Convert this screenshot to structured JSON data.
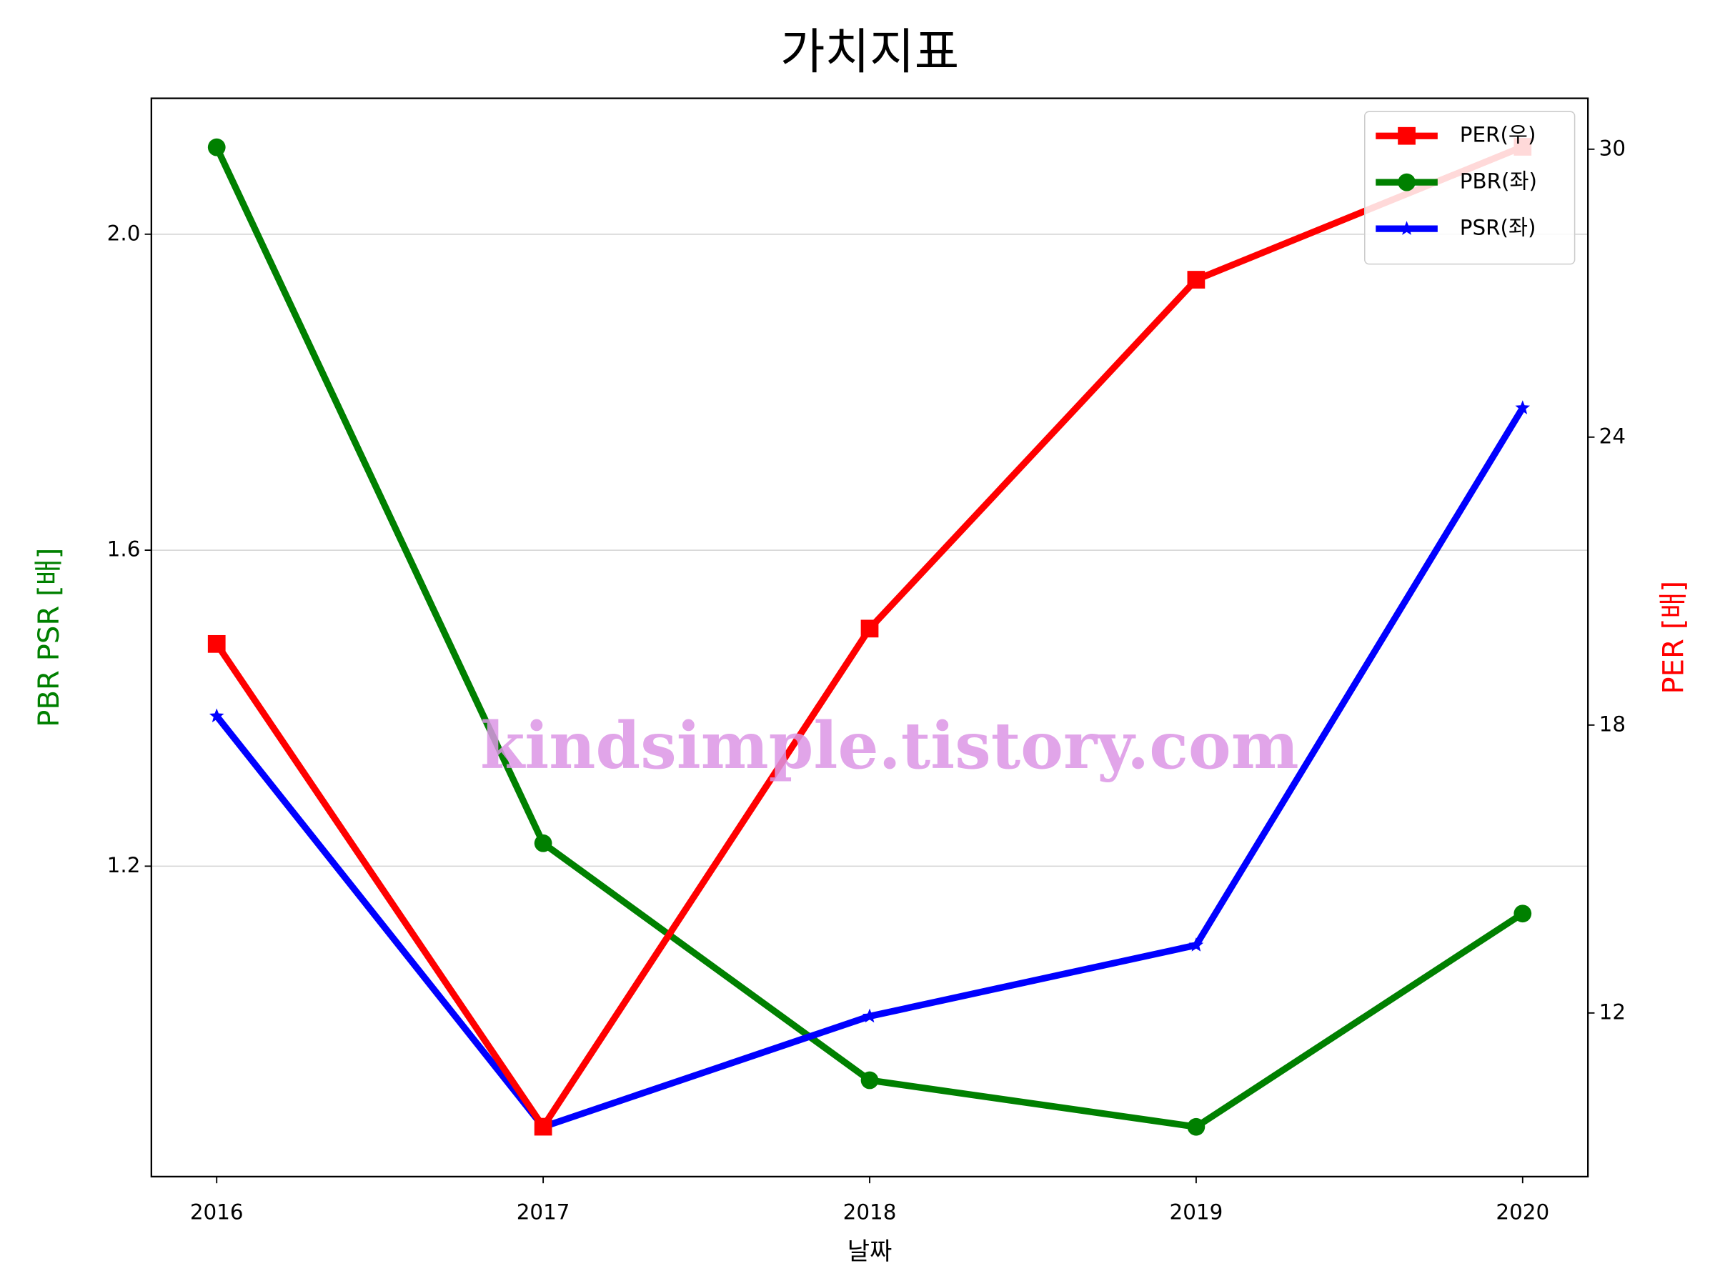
{
  "chart_data": {
    "type": "line",
    "title": "가치지표",
    "x_label": "날짜",
    "y_label": "PBR PSR [배]",
    "y2_label": "PER [배]",
    "y_label_color": "#008000",
    "y2_label_color": "#ff0000",
    "watermark": "kindsimple.tistory.com",
    "x": [
      2016,
      2017,
      2018,
      2019,
      2020
    ],
    "xlim": [
      2015.8,
      2020.2
    ],
    "xticks": [
      2016,
      2017,
      2018,
      2019,
      2020
    ],
    "ylim": [
      0.807,
      2.172
    ],
    "yticks": [
      1.2,
      1.6,
      {
        "value": 2.0,
        "label": "2.0"
      }
    ],
    "y2lim": [
      8.59,
      31.06
    ],
    "y2ticks": [
      12,
      18,
      24,
      30
    ],
    "grid": true,
    "legend": "upper right",
    "series": [
      {
        "name": "PER(우)",
        "color": "#ff0000",
        "marker": "square",
        "axis": "y2",
        "values": [
          19.69,
          9.63,
          20.01,
          27.28,
          30.05
        ]
      },
      {
        "name": "PBR(좌)",
        "color": "#008000",
        "marker": "circle",
        "values": [
          2.11,
          1.229,
          0.929,
          0.87,
          1.14
        ]
      },
      {
        "name": "PSR(좌)",
        "color": "#0000ff",
        "marker": "star",
        "values": [
          1.39,
          0.87,
          1.01,
          1.1,
          1.78
        ]
      }
    ]
  }
}
